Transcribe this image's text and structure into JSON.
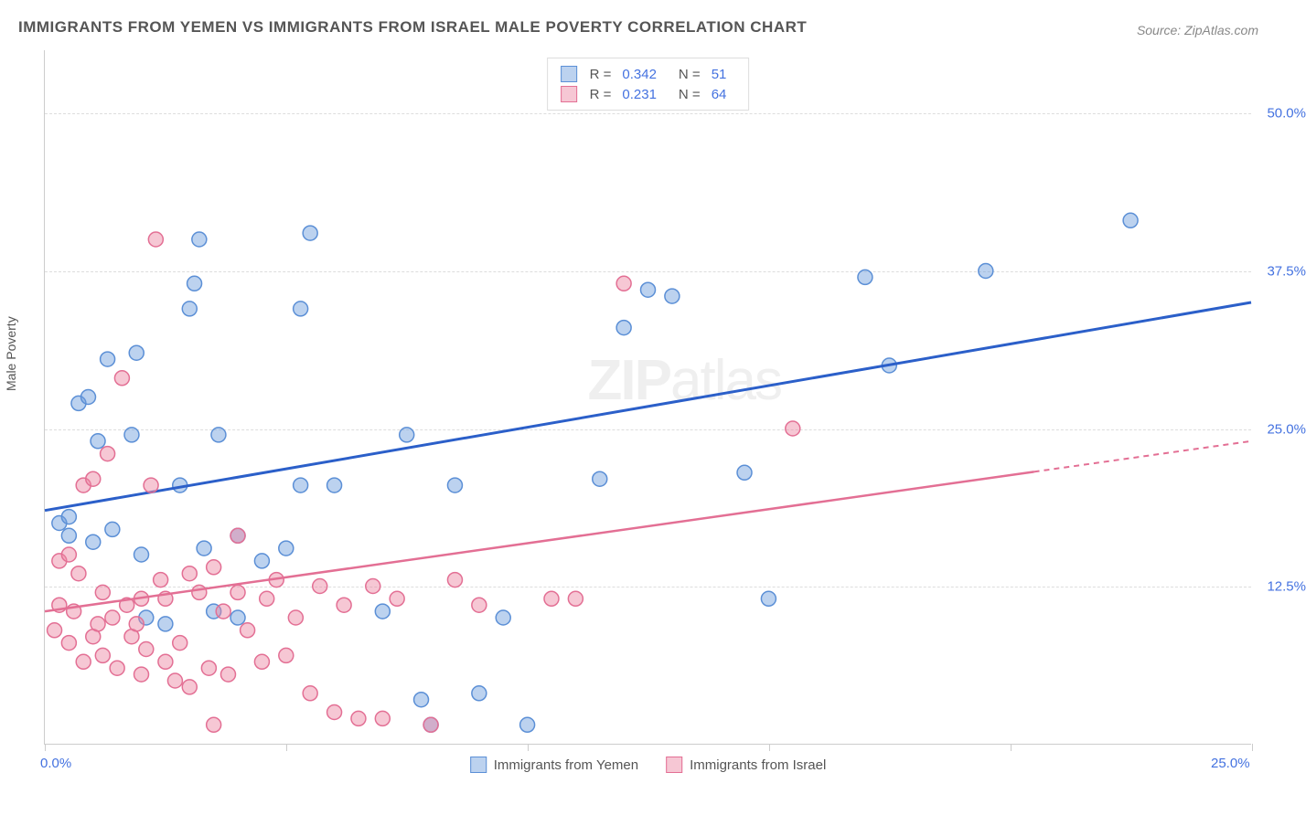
{
  "title": "IMMIGRANTS FROM YEMEN VS IMMIGRANTS FROM ISRAEL MALE POVERTY CORRELATION CHART",
  "source": "Source: ZipAtlas.com",
  "ylabel": "Male Poverty",
  "watermark_a": "ZIP",
  "watermark_b": "atlas",
  "chart": {
    "type": "scatter",
    "xlim": [
      0,
      25
    ],
    "ylim": [
      0,
      55
    ],
    "yticks": [
      12.5,
      25.0,
      37.5,
      50.0
    ],
    "ytick_labels": [
      "12.5%",
      "25.0%",
      "37.5%",
      "50.0%"
    ],
    "xticks": [
      0,
      5,
      10,
      15,
      20,
      25
    ],
    "xtick_labels_shown": {
      "0": "0.0%",
      "25": "25.0%"
    },
    "background_color": "#ffffff",
    "grid_color": "#dddddd",
    "series": [
      {
        "name": "Immigrants from Yemen",
        "marker_fill": "rgba(106,156,220,0.45)",
        "marker_stroke": "#5b8fd6",
        "marker_radius": 8,
        "R": "0.342",
        "N": "51",
        "regression": {
          "color": "#2b5fc9",
          "x1": 0,
          "y1": 18.5,
          "x2": 25,
          "y2": 35.0,
          "dash_from_x": null
        },
        "points": [
          [
            0.3,
            17.5
          ],
          [
            0.5,
            18.0
          ],
          [
            0.5,
            16.5
          ],
          [
            0.7,
            27.0
          ],
          [
            0.9,
            27.5
          ],
          [
            1.0,
            16.0
          ],
          [
            1.1,
            24.0
          ],
          [
            1.3,
            30.5
          ],
          [
            1.4,
            17.0
          ],
          [
            1.8,
            24.5
          ],
          [
            1.9,
            31.0
          ],
          [
            2.0,
            15.0
          ],
          [
            2.1,
            10.0
          ],
          [
            2.5,
            9.5
          ],
          [
            2.8,
            20.5
          ],
          [
            3.0,
            34.5
          ],
          [
            3.1,
            36.5
          ],
          [
            3.2,
            40.0
          ],
          [
            3.3,
            15.5
          ],
          [
            3.5,
            10.5
          ],
          [
            3.6,
            24.5
          ],
          [
            4.0,
            16.5
          ],
          [
            4.0,
            10.0
          ],
          [
            4.5,
            14.5
          ],
          [
            5.0,
            15.5
          ],
          [
            5.3,
            34.5
          ],
          [
            5.3,
            20.5
          ],
          [
            5.5,
            40.5
          ],
          [
            6.0,
            20.5
          ],
          [
            7.0,
            10.5
          ],
          [
            7.5,
            24.5
          ],
          [
            7.8,
            3.5
          ],
          [
            8.0,
            1.5
          ],
          [
            8.5,
            20.5
          ],
          [
            9.0,
            4.0
          ],
          [
            9.5,
            10.0
          ],
          [
            10.0,
            1.5
          ],
          [
            11.5,
            21.0
          ],
          [
            12.0,
            33.0
          ],
          [
            12.5,
            36.0
          ],
          [
            13.0,
            35.5
          ],
          [
            14.5,
            21.5
          ],
          [
            15.0,
            11.5
          ],
          [
            17.0,
            37.0
          ],
          [
            17.5,
            30.0
          ],
          [
            19.5,
            37.5
          ],
          [
            22.5,
            41.5
          ]
        ]
      },
      {
        "name": "Immigrants from Israel",
        "marker_fill": "rgba(235,130,160,0.45)",
        "marker_stroke": "#e36f94",
        "marker_radius": 8,
        "R": "0.231",
        "N": "64",
        "regression": {
          "color": "#e36f94",
          "x1": 0,
          "y1": 10.5,
          "x2": 25,
          "y2": 24.0,
          "dash_from_x": 20.5
        },
        "points": [
          [
            0.2,
            9.0
          ],
          [
            0.3,
            14.5
          ],
          [
            0.3,
            11.0
          ],
          [
            0.5,
            15.0
          ],
          [
            0.5,
            8.0
          ],
          [
            0.6,
            10.5
          ],
          [
            0.7,
            13.5
          ],
          [
            0.8,
            6.5
          ],
          [
            0.8,
            20.5
          ],
          [
            1.0,
            21.0
          ],
          [
            1.0,
            8.5
          ],
          [
            1.1,
            9.5
          ],
          [
            1.2,
            7.0
          ],
          [
            1.2,
            12.0
          ],
          [
            1.3,
            23.0
          ],
          [
            1.4,
            10.0
          ],
          [
            1.5,
            6.0
          ],
          [
            1.6,
            29.0
          ],
          [
            1.7,
            11.0
          ],
          [
            1.8,
            8.5
          ],
          [
            1.9,
            9.5
          ],
          [
            2.0,
            5.5
          ],
          [
            2.0,
            11.5
          ],
          [
            2.1,
            7.5
          ],
          [
            2.2,
            20.5
          ],
          [
            2.3,
            40.0
          ],
          [
            2.4,
            13.0
          ],
          [
            2.5,
            11.5
          ],
          [
            2.5,
            6.5
          ],
          [
            2.7,
            5.0
          ],
          [
            2.8,
            8.0
          ],
          [
            3.0,
            4.5
          ],
          [
            3.0,
            13.5
          ],
          [
            3.2,
            12.0
          ],
          [
            3.4,
            6.0
          ],
          [
            3.5,
            1.5
          ],
          [
            3.5,
            14.0
          ],
          [
            3.7,
            10.5
          ],
          [
            3.8,
            5.5
          ],
          [
            4.0,
            16.5
          ],
          [
            4.0,
            12.0
          ],
          [
            4.2,
            9.0
          ],
          [
            4.5,
            6.5
          ],
          [
            4.6,
            11.5
          ],
          [
            4.8,
            13.0
          ],
          [
            5.0,
            7.0
          ],
          [
            5.2,
            10.0
          ],
          [
            5.5,
            4.0
          ],
          [
            5.7,
            12.5
          ],
          [
            6.0,
            2.5
          ],
          [
            6.2,
            11.0
          ],
          [
            6.5,
            2.0
          ],
          [
            6.8,
            12.5
          ],
          [
            7.0,
            2.0
          ],
          [
            7.3,
            11.5
          ],
          [
            8.0,
            1.5
          ],
          [
            8.5,
            13.0
          ],
          [
            9.0,
            11.0
          ],
          [
            10.5,
            11.5
          ],
          [
            11.0,
            11.5
          ],
          [
            12.0,
            36.5
          ],
          [
            15.5,
            25.0
          ]
        ]
      }
    ]
  },
  "legend_bottom": [
    {
      "label": "Immigrants from Yemen",
      "fill": "rgba(106,156,220,0.45)",
      "stroke": "#5b8fd6"
    },
    {
      "label": "Immigrants from Israel",
      "fill": "rgba(235,130,160,0.45)",
      "stroke": "#e36f94"
    }
  ]
}
